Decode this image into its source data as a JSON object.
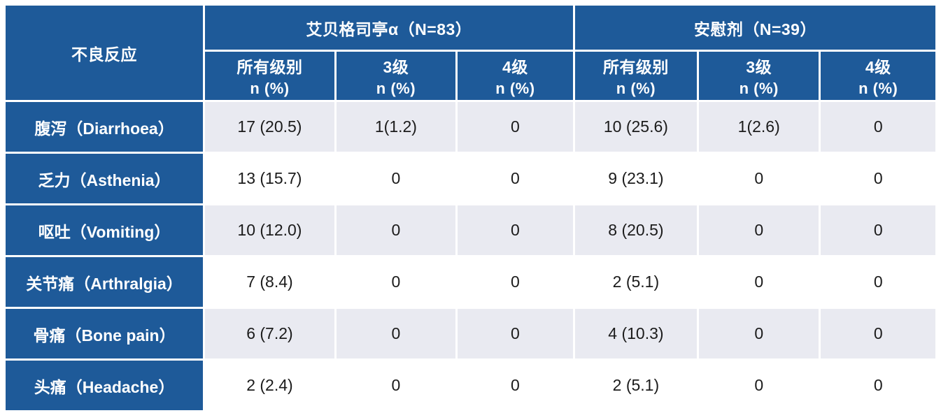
{
  "table": {
    "row_header_label": "不良反应",
    "groups": [
      {
        "label": "艾贝格司亭α（N=83）"
      },
      {
        "label": "安慰剂（N=39）"
      }
    ],
    "subheaders": [
      {
        "line1": "所有级别",
        "line2": "n (%)"
      },
      {
        "line1": "3级",
        "line2": "n (%)"
      },
      {
        "line1": "4级",
        "line2": "n (%)"
      },
      {
        "line1": "所有级别",
        "line2": "n (%)"
      },
      {
        "line1": "3级",
        "line2": "n (%)"
      },
      {
        "line1": "4级",
        "line2": "n (%)"
      }
    ],
    "rows": [
      {
        "label": "腹泻（Diarrhoea）",
        "values": [
          "17 (20.5)",
          "1(1.2)",
          "0",
          "10 (25.6)",
          "1(2.6)",
          "0"
        ]
      },
      {
        "label": "乏力（Asthenia）",
        "values": [
          "13 (15.7)",
          "0",
          "0",
          "9 (23.1)",
          "0",
          "0"
        ]
      },
      {
        "label": "呕吐（Vomiting）",
        "values": [
          "10 (12.0)",
          "0",
          "0",
          "8 (20.5)",
          "0",
          "0"
        ]
      },
      {
        "label": "关节痛（Arthralgia）",
        "values": [
          "7 (8.4)",
          "0",
          "0",
          "2 (5.1)",
          "0",
          "0"
        ]
      },
      {
        "label": "骨痛（Bone pain）",
        "values": [
          "6 (7.2)",
          "0",
          "0",
          "4 (10.3)",
          "0",
          "0"
        ]
      },
      {
        "label": "头痛（Headache）",
        "values": [
          "2 (2.4)",
          "0",
          "0",
          "2 (5.1)",
          "0",
          "0"
        ]
      }
    ]
  },
  "colors": {
    "header_blue": "#1e5a99",
    "alt_row": "#e9eaf1",
    "plain_row": "#ffffff",
    "grid_border": "#ffffff",
    "value_text": "#1b1b1b"
  }
}
